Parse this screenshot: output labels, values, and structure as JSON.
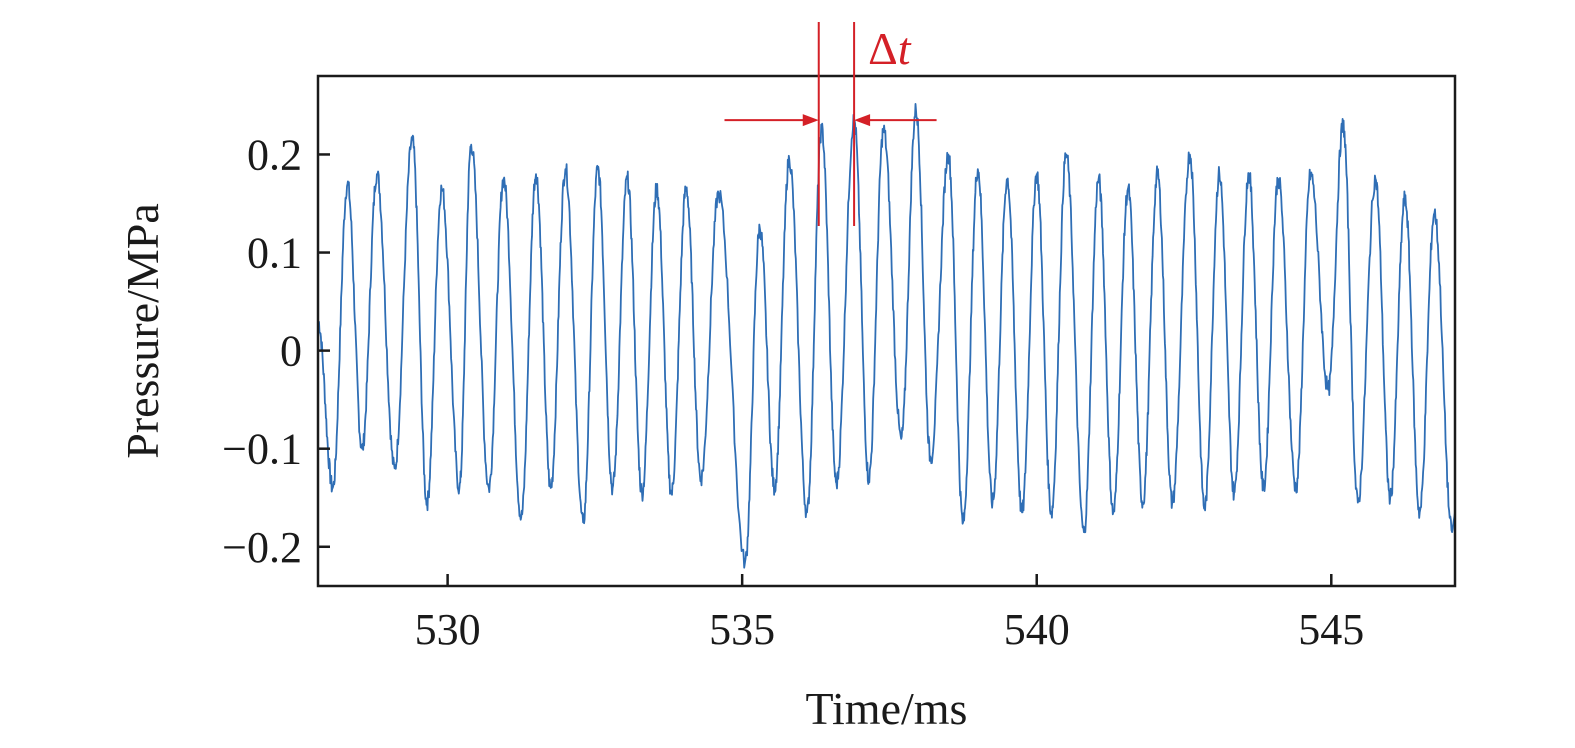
{
  "chart_data": {
    "type": "line",
    "title": "",
    "xlabel": "Time/ms",
    "ylabel": "Pressure/MPa",
    "xlim": [
      527.8,
      547.1
    ],
    "ylim": [
      -0.24,
      0.28
    ],
    "x_ticks": [
      530,
      535,
      540,
      545
    ],
    "x_tick_labels": [
      "530",
      "535",
      "540",
      "545"
    ],
    "y_ticks": [
      0.2,
      0.1,
      0,
      -0.1,
      -0.2
    ],
    "y_tick_labels": [
      "0.2",
      "0.1",
      "0",
      "−0.1",
      "−0.2"
    ],
    "grid": false,
    "legend": "none",
    "series": [
      {
        "color": "#2f6eb5",
        "peaks": [
          [
            528.3,
            0.17
          ],
          [
            528.8,
            0.18
          ],
          [
            529.4,
            0.215
          ],
          [
            529.9,
            0.165
          ],
          [
            530.4,
            0.21
          ],
          [
            530.95,
            0.175
          ],
          [
            531.5,
            0.18
          ],
          [
            532.0,
            0.185
          ],
          [
            532.55,
            0.185
          ],
          [
            533.05,
            0.175
          ],
          [
            533.55,
            0.165
          ],
          [
            534.05,
            0.165
          ],
          [
            534.6,
            0.16
          ],
          [
            535.3,
            0.125
          ],
          [
            535.8,
            0.195
          ],
          [
            536.35,
            0.225
          ],
          [
            536.9,
            0.235
          ],
          [
            537.4,
            0.225
          ],
          [
            537.95,
            0.245
          ],
          [
            538.5,
            0.2
          ],
          [
            539.0,
            0.185
          ],
          [
            539.5,
            0.175
          ],
          [
            540.0,
            0.18
          ],
          [
            540.5,
            0.2
          ],
          [
            541.05,
            0.175
          ],
          [
            541.55,
            0.165
          ],
          [
            542.05,
            0.18
          ],
          [
            542.6,
            0.2
          ],
          [
            543.1,
            0.18
          ],
          [
            543.6,
            0.18
          ],
          [
            544.1,
            0.175
          ],
          [
            544.65,
            0.18
          ],
          [
            545.2,
            0.23
          ],
          [
            545.75,
            0.175
          ],
          [
            546.25,
            0.155
          ],
          [
            546.75,
            0.14
          ]
        ],
        "troughs": [
          [
            528.05,
            -0.14
          ],
          [
            528.55,
            -0.1
          ],
          [
            529.1,
            -0.12
          ],
          [
            529.65,
            -0.155
          ],
          [
            530.2,
            -0.14
          ],
          [
            530.7,
            -0.14
          ],
          [
            531.25,
            -0.17
          ],
          [
            531.75,
            -0.14
          ],
          [
            532.3,
            -0.175
          ],
          [
            532.8,
            -0.14
          ],
          [
            533.3,
            -0.145
          ],
          [
            533.8,
            -0.145
          ],
          [
            534.3,
            -0.13
          ],
          [
            535.05,
            -0.215
          ],
          [
            535.55,
            -0.14
          ],
          [
            536.1,
            -0.165
          ],
          [
            536.6,
            -0.135
          ],
          [
            537.15,
            -0.13
          ],
          [
            537.7,
            -0.09
          ],
          [
            538.2,
            -0.11
          ],
          [
            538.75,
            -0.175
          ],
          [
            539.25,
            -0.155
          ],
          [
            539.75,
            -0.165
          ],
          [
            540.25,
            -0.165
          ],
          [
            540.8,
            -0.185
          ],
          [
            541.3,
            -0.165
          ],
          [
            541.8,
            -0.155
          ],
          [
            542.3,
            -0.155
          ],
          [
            542.85,
            -0.16
          ],
          [
            543.35,
            -0.145
          ],
          [
            543.85,
            -0.14
          ],
          [
            544.4,
            -0.14
          ],
          [
            544.95,
            -0.04
          ],
          [
            545.45,
            -0.155
          ],
          [
            546.0,
            -0.15
          ],
          [
            546.5,
            -0.165
          ],
          [
            547.05,
            -0.185
          ]
        ]
      }
    ],
    "annotations": [
      {
        "text_symbol": "Δ",
        "text_var": "t",
        "color": "#d42027",
        "x_start": 536.3,
        "x_end": 536.9,
        "y_arrow": 0.235,
        "arrow_left_from": 534.7,
        "arrow_right_to": 538.3
      }
    ]
  }
}
